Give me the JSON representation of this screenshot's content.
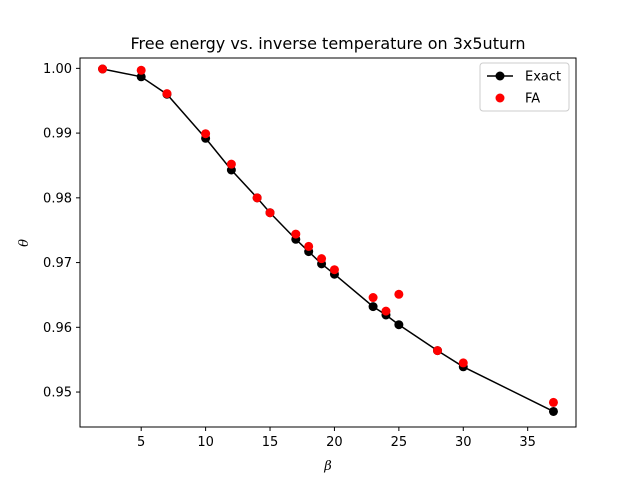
{
  "chart_data": {
    "type": "line",
    "title": "Free energy vs. inverse temperature on 3x5uturn",
    "xlabel": "β",
    "ylabel": "θ",
    "xlim": [
      0.25,
      38.75
    ],
    "ylim": [
      0.9446,
      1.0016
    ],
    "x_ticks": [
      5,
      10,
      15,
      20,
      25,
      30,
      35
    ],
    "y_ticks": [
      0.95,
      0.96,
      0.97,
      0.98,
      0.99,
      1.0
    ],
    "y_tick_labels": [
      "0.95",
      "0.96",
      "0.97",
      "0.98",
      "0.99",
      "1.00"
    ],
    "grid": false,
    "legend_position": "top-right",
    "series": [
      {
        "name": "Exact",
        "style": "line-with-markers",
        "color": "#000000",
        "x": [
          2,
          5,
          7,
          10,
          12,
          14,
          15,
          17,
          18,
          19,
          20,
          23,
          24,
          25,
          28,
          30,
          37
        ],
        "y": [
          0.9999,
          0.9987,
          0.996,
          0.9892,
          0.9843,
          0.98,
          0.9777,
          0.9736,
          0.9717,
          0.9698,
          0.9682,
          0.9632,
          0.9619,
          0.9604,
          0.9564,
          0.9539,
          0.947
        ]
      },
      {
        "name": "FA",
        "style": "markers",
        "color": "#ff0000",
        "x": [
          2,
          5,
          7,
          10,
          12,
          14,
          15,
          17,
          18,
          19,
          20,
          23,
          24,
          25,
          28,
          30,
          37
        ],
        "y": [
          0.9999,
          0.9997,
          0.9961,
          0.9899,
          0.9852,
          0.98,
          0.9777,
          0.9744,
          0.9725,
          0.9706,
          0.9689,
          0.9646,
          0.9625,
          0.9651,
          0.9564,
          0.9545,
          0.9484
        ]
      }
    ]
  }
}
